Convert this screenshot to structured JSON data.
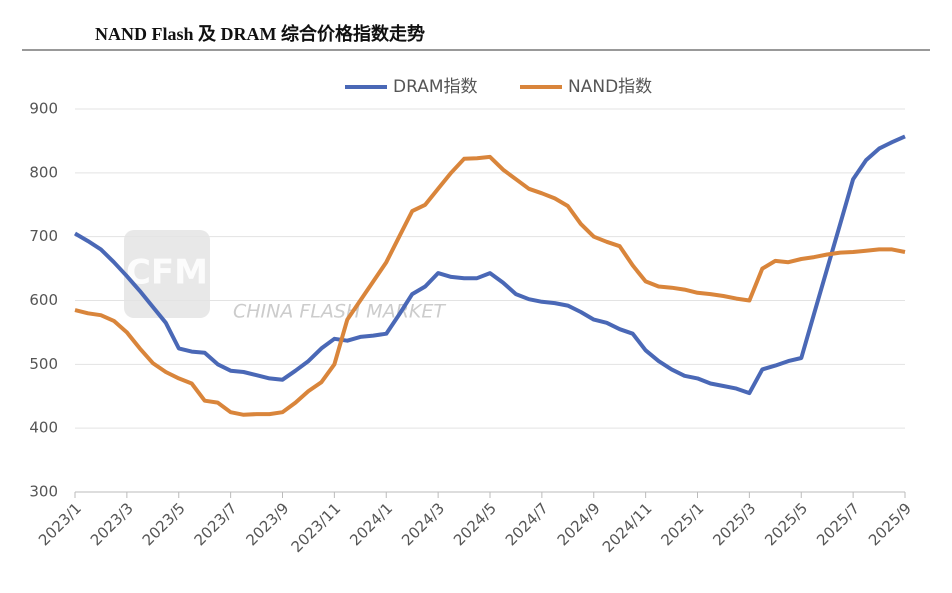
{
  "chart_data": {
    "type": "line",
    "title": "NAND Flash 及 DRAM 综合价格指数走势",
    "watermark": {
      "logo": "CFM",
      "text": "CHINA FLASH MARKET"
    },
    "categories": [
      "2023/1",
      null,
      null,
      null,
      "2023/3",
      null,
      null,
      null,
      "2023/5",
      null,
      null,
      null,
      "2023/7",
      null,
      null,
      null,
      "2023/9",
      null,
      null,
      null,
      "2023/11",
      null,
      null,
      null,
      "2024/1",
      null,
      null,
      null,
      "2024/3",
      null,
      null,
      null,
      "2024/5",
      null,
      null,
      null,
      "2024/7",
      null,
      null,
      null,
      "2024/9",
      null,
      null,
      null,
      "2024/11",
      null,
      null,
      null,
      "2025/1",
      null,
      null,
      null,
      "2025/3",
      null,
      null,
      null,
      "2025/5",
      null,
      null,
      null,
      "2025/7",
      null,
      null,
      null,
      "2025/9"
    ],
    "series": [
      {
        "name": "DRAM指数",
        "color": "#4a68b6",
        "values": [
          705,
          693,
          680,
          660,
          638,
          615,
          590,
          565,
          525,
          520,
          518,
          500,
          490,
          488,
          483,
          478,
          476,
          490,
          505,
          525,
          540,
          537,
          543,
          545,
          548,
          578,
          610,
          622,
          643,
          637,
          635,
          635,
          643,
          628,
          610,
          602,
          598,
          596,
          592,
          582,
          570,
          565,
          555,
          548,
          522,
          505,
          492,
          482,
          478,
          470,
          466,
          462,
          455,
          492,
          498,
          505,
          510,
          580,
          650,
          720,
          790,
          820,
          838,
          848,
          857
        ]
      },
      {
        "name": "NAND指数",
        "color": "#d9853b",
        "values": [
          585,
          580,
          577,
          568,
          550,
          525,
          502,
          488,
          478,
          470,
          443,
          440,
          425,
          421,
          422,
          422,
          425,
          440,
          458,
          472,
          500,
          570,
          600,
          630,
          660,
          700,
          740,
          750,
          775,
          800,
          822,
          823,
          825,
          805,
          790,
          775,
          768,
          760,
          748,
          720,
          700,
          692,
          685,
          655,
          630,
          622,
          620,
          617,
          612,
          610,
          607,
          603,
          600,
          650,
          662,
          660,
          665,
          668,
          672,
          675,
          676,
          678,
          680,
          680,
          676
        ]
      }
    ],
    "ylim": [
      300,
      900
    ],
    "yticks": [
      300,
      400,
      500,
      600,
      700,
      800,
      900
    ],
    "grid": true,
    "legend": "top"
  }
}
